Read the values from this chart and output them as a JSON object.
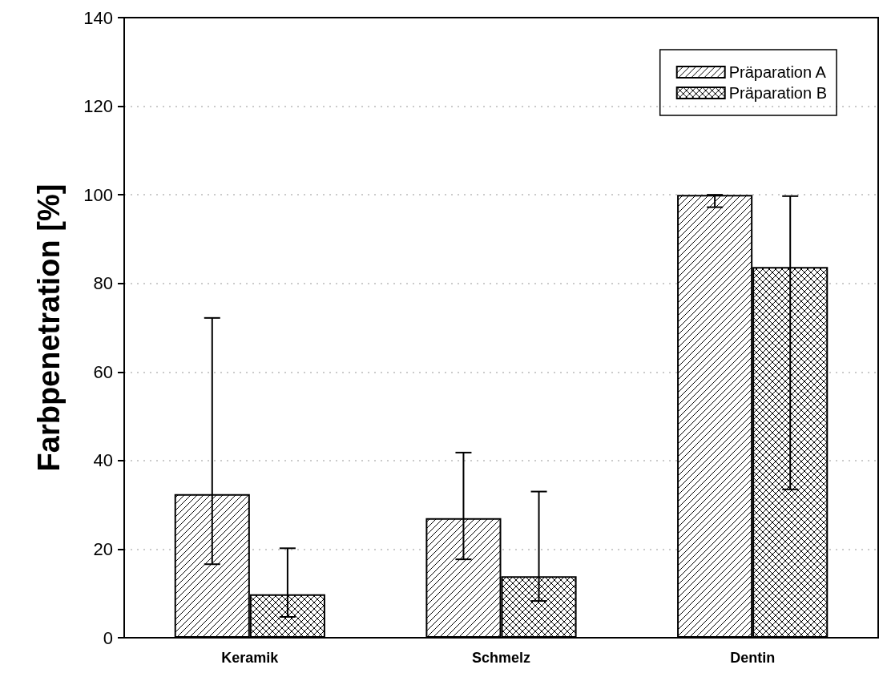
{
  "chart_data": {
    "type": "bar",
    "ylabel": "Farbpenetration [%]",
    "categories": [
      "Keramik",
      "Schmelz",
      "Dentin"
    ],
    "series": [
      {
        "name": "Präparation A",
        "color": "#000000",
        "values": [
          32.4,
          27.0,
          100
        ],
        "errors": [
          [
            16.6,
            72.2
          ],
          [
            17.7,
            41.8
          ],
          [
            97.2,
            100
          ]
        ]
      },
      {
        "name": "Präparation B",
        "color": "#000000",
        "values": [
          9.8,
          13.9,
          83.7
        ],
        "errors": [
          [
            4.7,
            20.2
          ],
          [
            8.3,
            33.0
          ],
          [
            33.5,
            99.7
          ]
        ]
      }
    ],
    "ylim": [
      0,
      140
    ],
    "yticks": [
      0,
      20,
      40,
      60,
      80,
      100,
      120,
      140
    ],
    "grid": "y",
    "legend": "top right"
  }
}
